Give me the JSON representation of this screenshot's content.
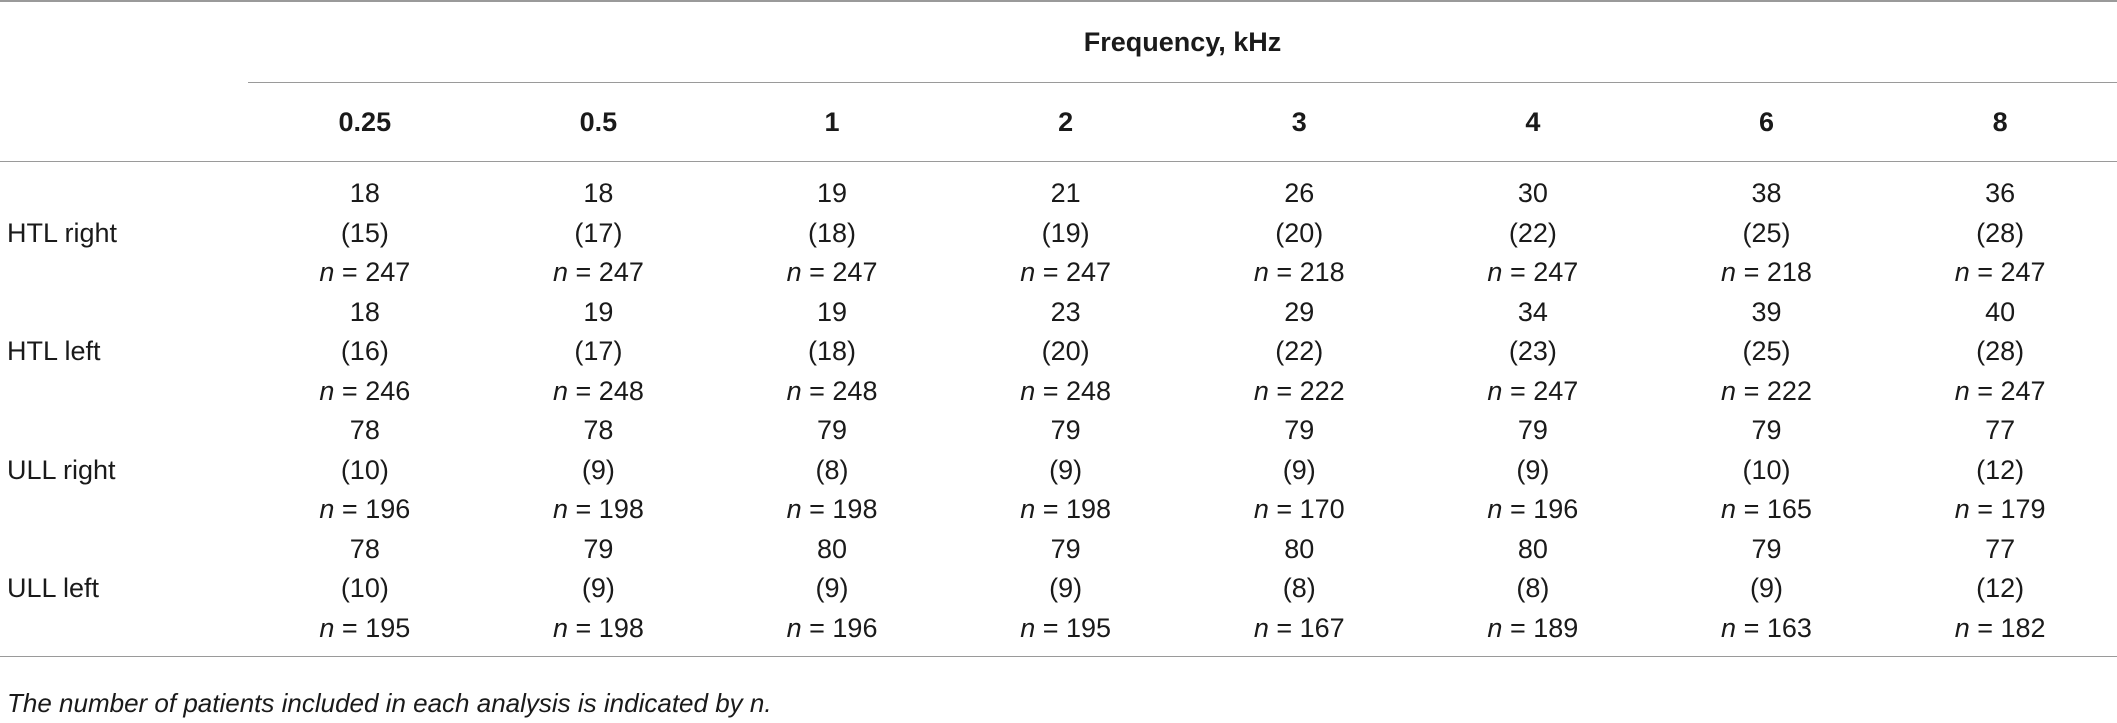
{
  "table": {
    "group_header": "Frequency, kHz",
    "frequencies": [
      "0.25",
      "0.5",
      "1",
      "2",
      "3",
      "4",
      "6",
      "8"
    ],
    "rows": [
      {
        "label": "HTL right",
        "cells": [
          {
            "mean": "18",
            "sd": "(15)",
            "n": "247"
          },
          {
            "mean": "18",
            "sd": "(17)",
            "n": "247"
          },
          {
            "mean": "19",
            "sd": "(18)",
            "n": "247"
          },
          {
            "mean": "21",
            "sd": "(19)",
            "n": "247"
          },
          {
            "mean": "26",
            "sd": "(20)",
            "n": "218"
          },
          {
            "mean": "30",
            "sd": "(22)",
            "n": "247"
          },
          {
            "mean": "38",
            "sd": "(25)",
            "n": "218"
          },
          {
            "mean": "36",
            "sd": "(28)",
            "n": "247"
          }
        ]
      },
      {
        "label": "HTL left",
        "cells": [
          {
            "mean": "18",
            "sd": "(16)",
            "n": "246"
          },
          {
            "mean": "19",
            "sd": "(17)",
            "n": "248"
          },
          {
            "mean": "19",
            "sd": "(18)",
            "n": "248"
          },
          {
            "mean": "23",
            "sd": "(20)",
            "n": "248"
          },
          {
            "mean": "29",
            "sd": "(22)",
            "n": "222"
          },
          {
            "mean": "34",
            "sd": "(23)",
            "n": "247"
          },
          {
            "mean": "39",
            "sd": "(25)",
            "n": "222"
          },
          {
            "mean": "40",
            "sd": "(28)",
            "n": "247"
          }
        ]
      },
      {
        "label": "ULL right",
        "cells": [
          {
            "mean": "78",
            "sd": "(10)",
            "n": "196"
          },
          {
            "mean": "78",
            "sd": "(9)",
            "n": "198"
          },
          {
            "mean": "79",
            "sd": "(8)",
            "n": "198"
          },
          {
            "mean": "79",
            "sd": "(9)",
            "n": "198"
          },
          {
            "mean": "79",
            "sd": "(9)",
            "n": "170"
          },
          {
            "mean": "79",
            "sd": "(9)",
            "n": "196"
          },
          {
            "mean": "79",
            "sd": "(10)",
            "n": "165"
          },
          {
            "mean": "77",
            "sd": "(12)",
            "n": "179"
          }
        ]
      },
      {
        "label": "ULL left",
        "cells": [
          {
            "mean": "78",
            "sd": "(10)",
            "n": "195"
          },
          {
            "mean": "79",
            "sd": "(9)",
            "n": "198"
          },
          {
            "mean": "80",
            "sd": "(9)",
            "n": "196"
          },
          {
            "mean": "79",
            "sd": "(9)",
            "n": "195"
          },
          {
            "mean": "80",
            "sd": "(8)",
            "n": "167"
          },
          {
            "mean": "80",
            "sd": "(8)",
            "n": "189"
          },
          {
            "mean": "79",
            "sd": "(9)",
            "n": "163"
          },
          {
            "mean": "77",
            "sd": "(12)",
            "n": "182"
          }
        ]
      }
    ],
    "n_symbol": "n",
    "n_equals": " = "
  },
  "footnote": "The number of patients included in each analysis is indicated by n.",
  "colors": {
    "text": "#1a1a1a",
    "rule": "#9a9a9a",
    "background": "#ffffff"
  }
}
